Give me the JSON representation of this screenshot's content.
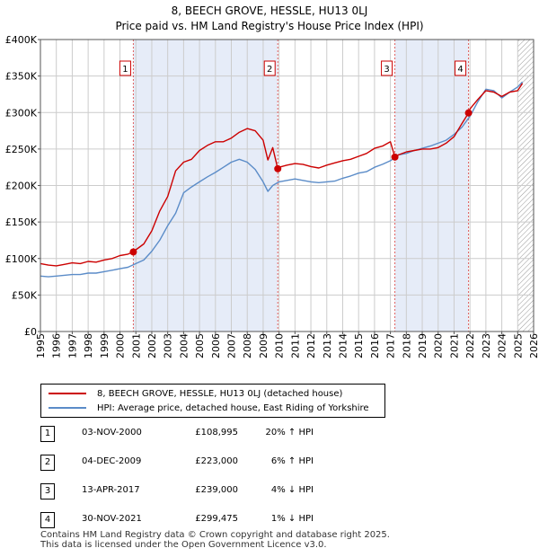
{
  "title": {
    "line1": "8, BEECH GROVE, HESSLE, HU13 0LJ",
    "line2": "Price paid vs. HM Land Registry's House Price Index (HPI)"
  },
  "chart_data": {
    "type": "line",
    "ylabel": "",
    "xlabel": "",
    "ylim": [
      0,
      400000
    ],
    "xlim": [
      1995,
      2026
    ],
    "y_ticks": [
      {
        "value": 0,
        "label": "£0"
      },
      {
        "value": 50000,
        "label": "£50K"
      },
      {
        "value": 100000,
        "label": "£100K"
      },
      {
        "value": 150000,
        "label": "£150K"
      },
      {
        "value": 200000,
        "label": "£200K"
      },
      {
        "value": 250000,
        "label": "£250K"
      },
      {
        "value": 300000,
        "label": "£300K"
      },
      {
        "value": 350000,
        "label": "£350K"
      },
      {
        "value": 400000,
        "label": "£400K"
      }
    ],
    "x_ticks": [
      "1995",
      "1996",
      "1997",
      "1998",
      "1999",
      "2000",
      "2001",
      "2002",
      "2003",
      "2004",
      "2005",
      "2006",
      "2007",
      "2008",
      "2009",
      "2010",
      "2011",
      "2012",
      "2013",
      "2014",
      "2015",
      "2016",
      "2017",
      "2018",
      "2019",
      "2020",
      "2021",
      "2022",
      "2023",
      "2024",
      "2025",
      "2026"
    ],
    "colors": {
      "property": "#cc0000",
      "hpi": "#5b8cc8",
      "shade": "#e6ecf8",
      "grid": "#cccccc",
      "vline": "#e06060"
    },
    "shaded_periods": [
      [
        2000.84,
        2009.92
      ],
      [
        2017.28,
        2021.91
      ]
    ],
    "hatch_from": 2025.0,
    "series": [
      {
        "name": "8, BEECH GROVE, HESSLE, HU13 0LJ (detached house)",
        "x": [
          1995,
          1995.5,
          1996,
          1996.5,
          1997,
          1997.5,
          1998,
          1998.5,
          1999,
          1999.5,
          2000,
          2000.5,
          2000.84,
          2001,
          2001.5,
          2002,
          2002.5,
          2003,
          2003.5,
          2004,
          2004.5,
          2005,
          2005.5,
          2006,
          2006.5,
          2007,
          2007.5,
          2008,
          2008.5,
          2009,
          2009.3,
          2009.6,
          2009.92,
          2010,
          2010.5,
          2011,
          2011.5,
          2012,
          2012.5,
          2013,
          2013.5,
          2014,
          2014.5,
          2015,
          2015.5,
          2016,
          2016.5,
          2017,
          2017.28,
          2017.5,
          2018,
          2018.5,
          2019,
          2019.5,
          2020,
          2020.5,
          2021,
          2021.5,
          2021.91,
          2022,
          2022.5,
          2023,
          2023.5,
          2024,
          2024.5,
          2025,
          2025.3
        ],
        "values": [
          93000,
          91000,
          90000,
          92000,
          94000,
          93000,
          96000,
          95000,
          98000,
          100000,
          104000,
          106000,
          108995,
          112000,
          120000,
          138000,
          165000,
          185000,
          220000,
          232000,
          236000,
          248000,
          255000,
          260000,
          260000,
          265000,
          273000,
          278000,
          275000,
          262000,
          235000,
          252000,
          223000,
          225000,
          228000,
          230000,
          229000,
          226000,
          224000,
          228000,
          231000,
          234000,
          236000,
          240000,
          244000,
          251000,
          254000,
          260000,
          239000,
          242000,
          246000,
          248000,
          250000,
          250000,
          252000,
          258000,
          267000,
          285000,
          299475,
          305000,
          318000,
          330000,
          328000,
          322000,
          328000,
          330000,
          340000
        ]
      },
      {
        "name": "HPI: Average price, detached house, East Riding of Yorkshire",
        "x": [
          1995,
          1995.5,
          1996,
          1996.5,
          1997,
          1997.5,
          1998,
          1998.5,
          1999,
          1999.5,
          2000,
          2000.5,
          2001,
          2001.5,
          2002,
          2002.5,
          2003,
          2003.5,
          2004,
          2004.5,
          2005,
          2005.5,
          2006,
          2006.5,
          2007,
          2007.5,
          2008,
          2008.5,
          2009,
          2009.3,
          2009.6,
          2010,
          2010.5,
          2011,
          2011.5,
          2012,
          2012.5,
          2013,
          2013.5,
          2014,
          2014.5,
          2015,
          2015.5,
          2016,
          2016.5,
          2017,
          2017.5,
          2018,
          2018.5,
          2019,
          2019.5,
          2020,
          2020.5,
          2021,
          2021.5,
          2022,
          2022.5,
          2023,
          2023.5,
          2024,
          2024.5,
          2025,
          2025.3
        ],
        "values": [
          76000,
          75000,
          76000,
          77000,
          78000,
          78000,
          80000,
          80000,
          82000,
          84000,
          86000,
          88000,
          93000,
          98000,
          110000,
          125000,
          145000,
          162000,
          190000,
          198000,
          205000,
          212000,
          218000,
          225000,
          232000,
          236000,
          232000,
          222000,
          205000,
          192000,
          200000,
          205000,
          207000,
          209000,
          207000,
          205000,
          204000,
          205000,
          206000,
          210000,
          213000,
          217000,
          219000,
          225000,
          229000,
          234000,
          242000,
          244000,
          248000,
          251000,
          254000,
          258000,
          262000,
          270000,
          280000,
          295000,
          315000,
          332000,
          330000,
          320000,
          328000,
          335000,
          342000
        ]
      }
    ],
    "sales": [
      {
        "num": "1",
        "x": 2000.84,
        "price": 108995
      },
      {
        "num": "2",
        "x": 2009.92,
        "price": 223000
      },
      {
        "num": "3",
        "x": 2017.28,
        "price": 239000
      },
      {
        "num": "4",
        "x": 2021.91,
        "price": 299475
      }
    ]
  },
  "legend": {
    "property": "8, BEECH GROVE, HESSLE, HU13 0LJ (detached house)",
    "hpi": "HPI: Average price, detached house, East Riding of Yorkshire"
  },
  "transactions": [
    {
      "num": "1",
      "date": "03-NOV-2000",
      "price": "£108,995",
      "hpi": "20% ↑ HPI"
    },
    {
      "num": "2",
      "date": "04-DEC-2009",
      "price": "£223,000",
      "hpi": "6% ↑ HPI"
    },
    {
      "num": "3",
      "date": "13-APR-2017",
      "price": "£239,000",
      "hpi": "4% ↓ HPI"
    },
    {
      "num": "4",
      "date": "30-NOV-2021",
      "price": "£299,475",
      "hpi": "1% ↓ HPI"
    }
  ],
  "footer": {
    "line1": "Contains HM Land Registry data © Crown copyright and database right 2025.",
    "line2": "This data is licensed under the Open Government Licence v3.0."
  }
}
